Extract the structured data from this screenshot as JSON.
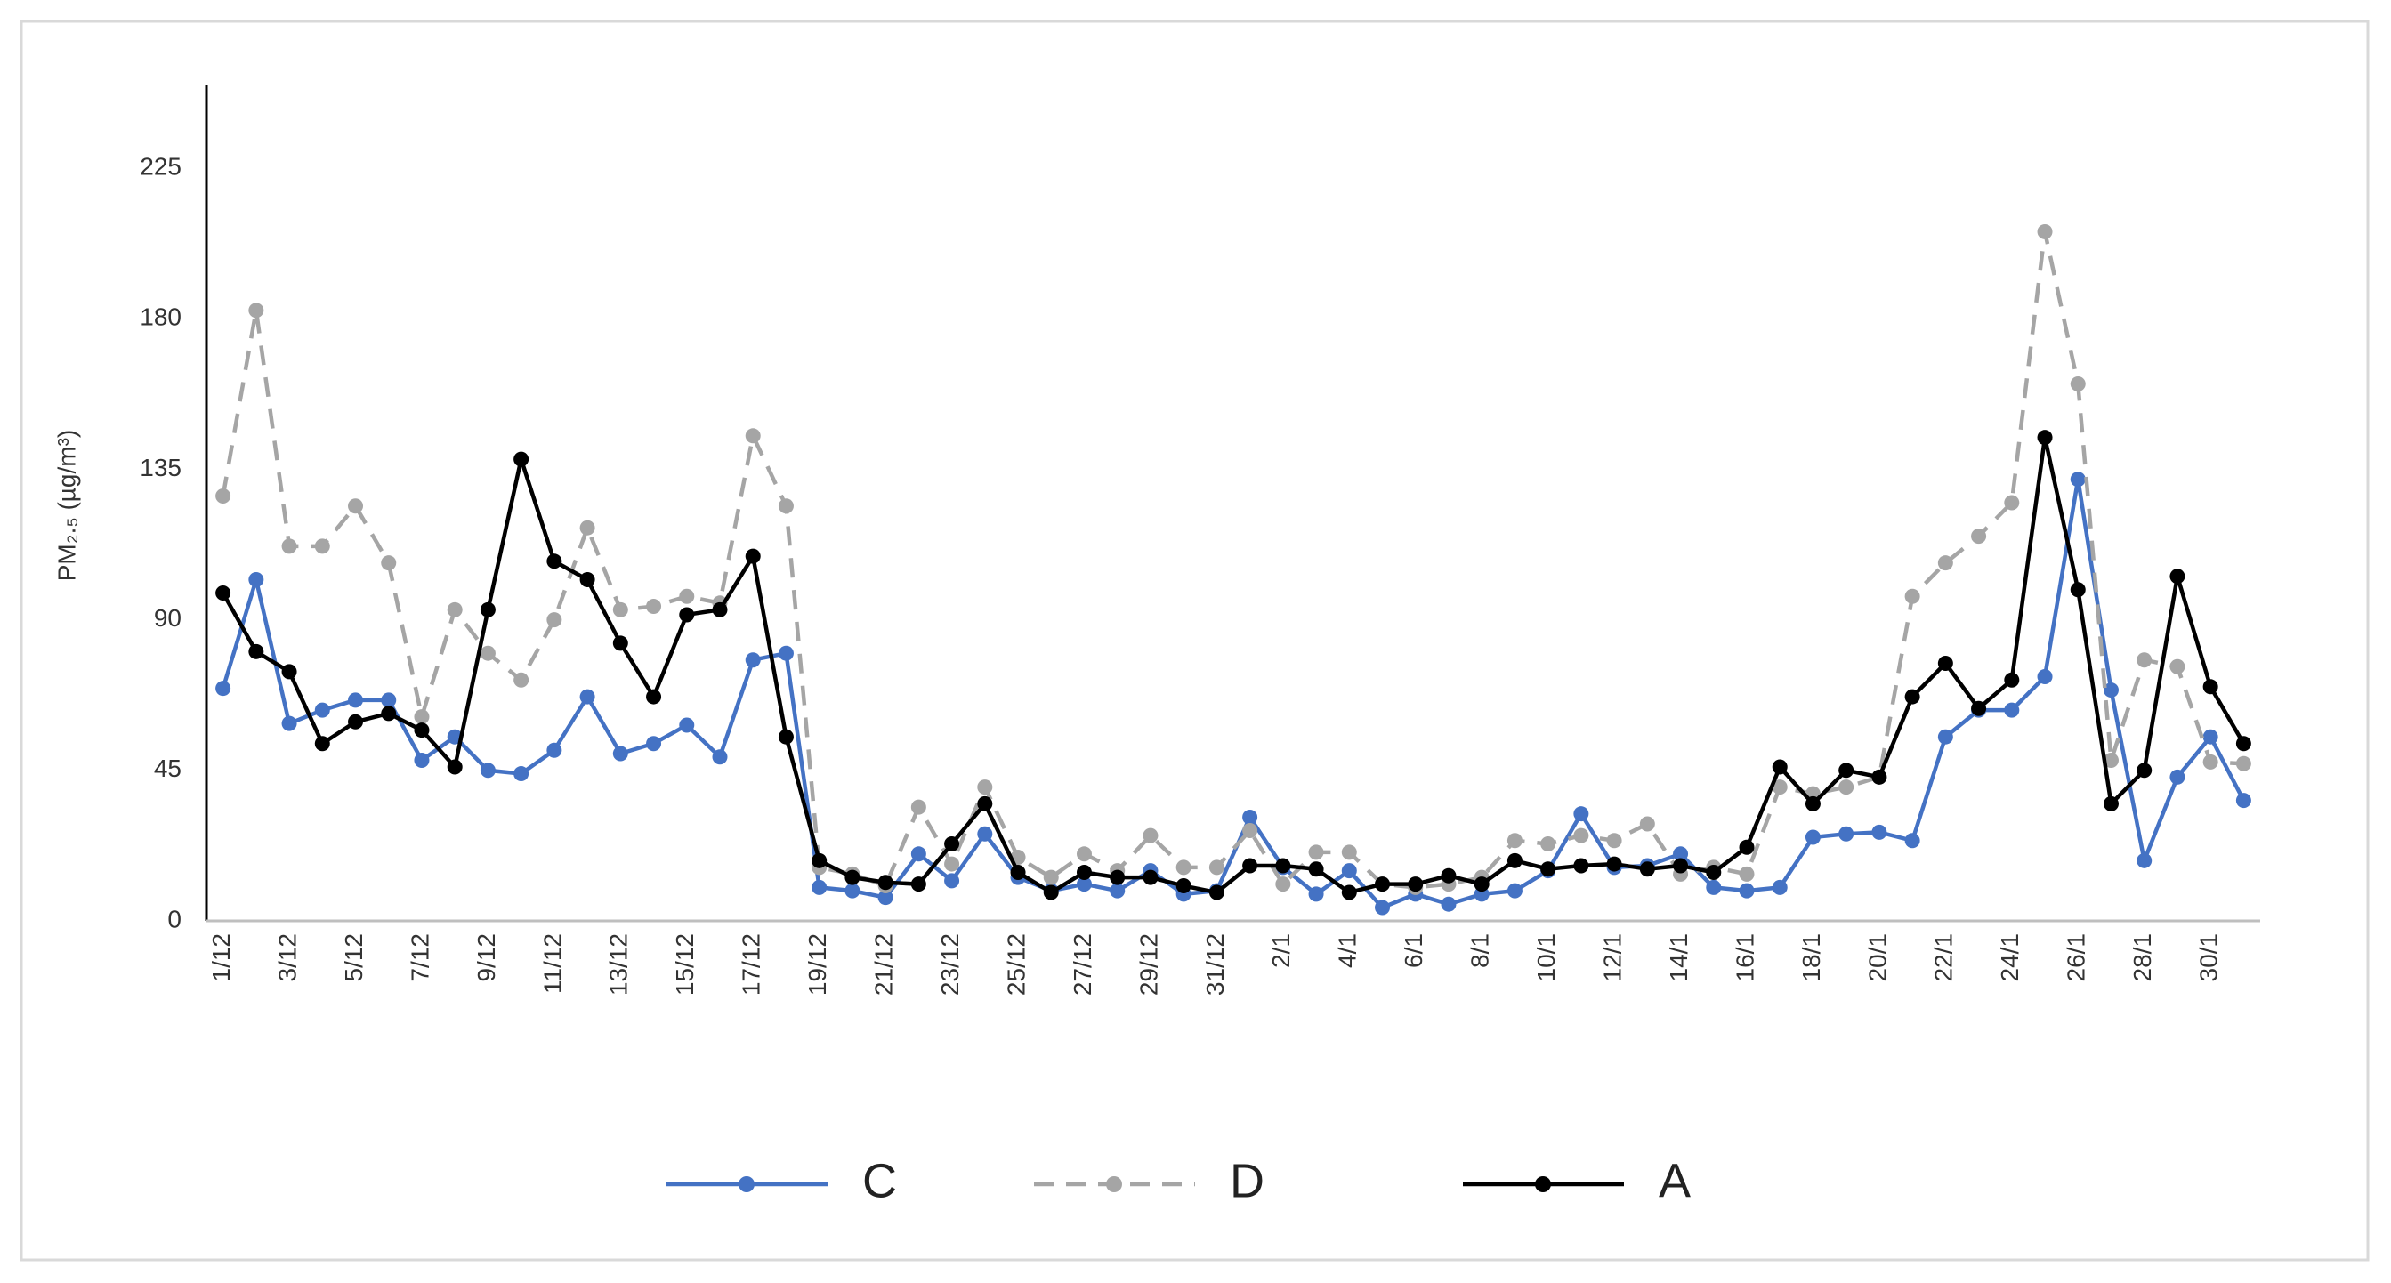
{
  "chart_data": {
    "type": "line",
    "ylabel": "PM₂.₅  (µg/m³)",
    "categories": [
      "1/12",
      null,
      "3/12",
      null,
      "5/12",
      null,
      "7/12",
      null,
      "9/12",
      null,
      "11/12",
      null,
      "13/12",
      null,
      "15/12",
      null,
      "17/12",
      null,
      "19/12",
      null,
      "21/12",
      null,
      "23/12",
      null,
      "25/12",
      null,
      "27/12",
      null,
      "29/12",
      null,
      "31/12",
      null,
      "2/1",
      null,
      "4/1",
      null,
      "6/1",
      null,
      "8/1",
      null,
      "10/1",
      null,
      "12/1",
      null,
      "14/1",
      null,
      "16/1",
      null,
      "18/1",
      null,
      "20/1",
      null,
      "22/1",
      null,
      "24/1",
      null,
      "26/1",
      null,
      "28/1",
      null,
      "30/1",
      null
    ],
    "series": [
      {
        "name": "C",
        "color": "#4472c4",
        "dashed": false,
        "values": [
          69.5,
          102,
          59,
          63,
          66,
          66,
          48,
          55,
          45,
          44,
          51,
          67,
          50,
          53,
          58.5,
          49,
          78,
          80,
          10,
          9,
          7,
          20,
          12,
          26,
          13,
          9,
          11,
          9,
          15,
          8,
          9,
          31,
          16,
          8,
          15,
          4,
          8,
          5,
          8,
          9,
          15,
          32,
          16,
          16.5,
          20,
          10,
          9,
          10,
          25,
          26,
          26.5,
          24,
          55,
          63,
          63,
          73,
          132,
          69,
          18,
          43,
          55,
          36
        ]
      },
      {
        "name": "D",
        "color": "#a5a5a5",
        "dashed": true,
        "values": [
          127,
          182.5,
          112,
          112,
          124,
          107,
          61,
          93,
          80,
          72,
          90,
          117.5,
          93,
          94,
          97,
          95,
          145,
          124,
          16,
          14,
          10.5,
          34,
          17,
          40,
          19,
          13,
          20,
          15,
          25.5,
          16,
          16,
          27,
          11,
          20.5,
          20.5,
          11,
          10,
          11,
          13,
          24,
          23,
          25.5,
          24,
          29,
          14,
          16,
          14,
          40,
          38,
          40,
          43,
          97,
          107,
          115,
          125,
          206,
          160.5,
          48,
          78,
          76,
          47.5,
          47
        ]
      },
      {
        "name": "A",
        "color": "#000000",
        "dashed": false,
        "values": [
          98,
          80.5,
          74.5,
          53,
          59.5,
          62,
          57,
          46,
          93,
          138,
          107.5,
          102,
          83,
          67,
          91.5,
          93,
          109,
          55,
          18,
          13,
          11.5,
          11,
          23,
          35,
          14.5,
          8.5,
          14.5,
          13,
          13,
          10.5,
          8.5,
          16.5,
          16.5,
          15.5,
          8.5,
          11,
          11,
          13.5,
          11,
          18,
          15.5,
          16.5,
          17,
          15.5,
          16.5,
          14.5,
          22,
          46,
          35,
          45,
          43,
          67,
          77,
          63.5,
          72,
          144.5,
          99,
          35,
          45,
          103,
          70,
          53
        ]
      }
    ],
    "ylim": [
      0,
      250
    ],
    "yticks": [
      0,
      45,
      90,
      135,
      180,
      225
    ],
    "grid": false,
    "legend": "bottom"
  }
}
